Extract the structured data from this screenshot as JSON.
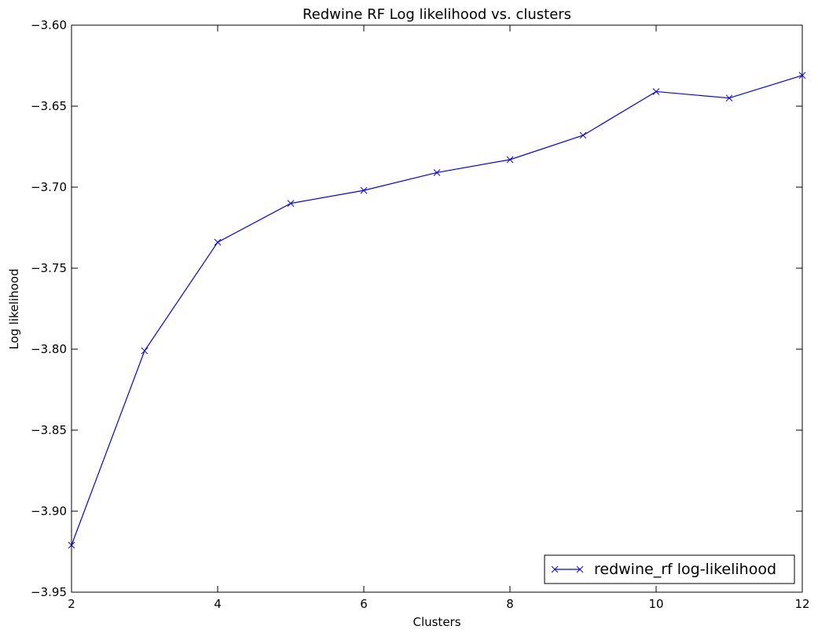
{
  "chart_data": {
    "type": "line",
    "title": "Redwine RF Log likelihood vs. clusters",
    "xlabel": "Clusters",
    "ylabel": "Log likelihood",
    "xlim": [
      2,
      12
    ],
    "ylim": [
      -3.95,
      -3.6
    ],
    "xticks": [
      2,
      4,
      6,
      8,
      10,
      12
    ],
    "yticks": [
      -3.95,
      -3.9,
      -3.85,
      -3.8,
      -3.75,
      -3.7,
      -3.65,
      -3.6
    ],
    "grid": false,
    "legend_position": "bottom-right",
    "series": [
      {
        "name": "redwine_rf log-likelihood",
        "color": "#0000ff",
        "marker": "x",
        "x": [
          2,
          3,
          4,
          5,
          6,
          7,
          8,
          9,
          10,
          11,
          12
        ],
        "y": [
          -3.921,
          -3.801,
          -3.734,
          -3.71,
          -3.702,
          -3.691,
          -3.683,
          -3.668,
          -3.641,
          -3.645,
          -3.631
        ]
      }
    ]
  }
}
